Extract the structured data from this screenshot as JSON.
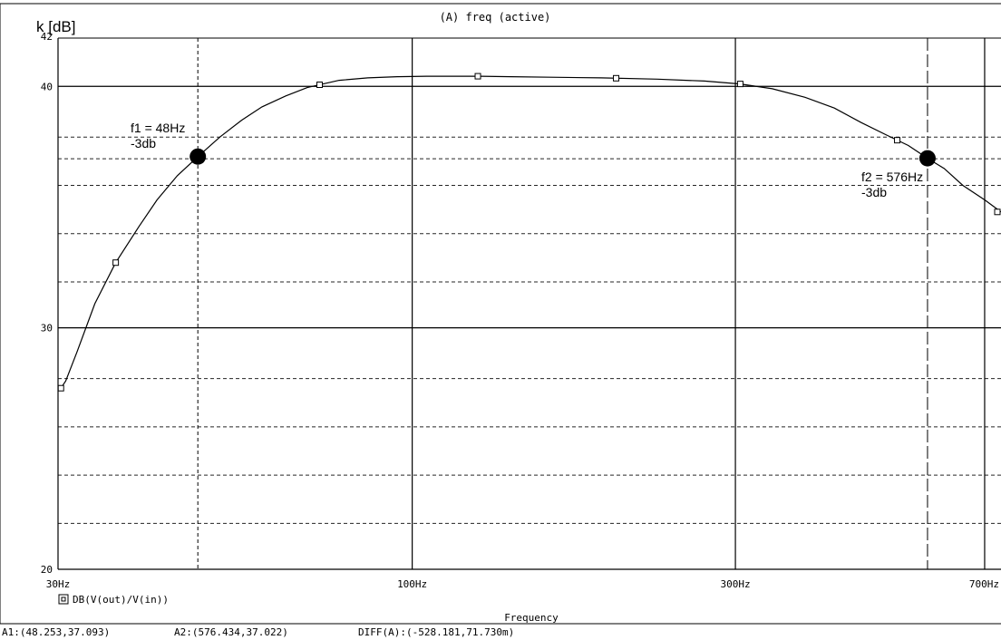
{
  "chart_data": {
    "type": "line",
    "title": "(A) freq (active)",
    "ylabel": "k [dB]",
    "xlabel": "Frequency",
    "x_scale": "log",
    "xlim": [
      30,
      740
    ],
    "ylim": [
      20,
      42
    ],
    "x_ticks": [
      {
        "value": 30,
        "label": "30Hz"
      },
      {
        "value": 100,
        "label": "100Hz"
      },
      {
        "value": 300,
        "label": "300Hz"
      },
      {
        "value": 700,
        "label": "700Hz"
      }
    ],
    "y_ticks": [
      {
        "value": 20,
        "label": "20"
      },
      {
        "value": 30,
        "label": "30"
      },
      {
        "value": 40,
        "label": "40"
      },
      {
        "value": 42,
        "label": "42"
      }
    ],
    "grid": true,
    "series": [
      {
        "name": "DB(V(out)/V(in))",
        "marker": "square",
        "x": [
          30.3,
          30.8,
          32,
          34,
          36.5,
          39.5,
          42,
          45,
          48.25,
          52,
          56,
          60,
          65,
          70,
          78,
          86,
          95,
          105,
          115,
          126,
          140,
          160,
          190,
          230,
          270,
          305,
          340,
          380,
          420,
          460,
          500,
          540,
          576.4,
          610,
          650,
          700,
          740
        ],
        "y": [
          27.5,
          27.8,
          29.0,
          31.0,
          32.7,
          34.2,
          35.3,
          36.3,
          37.09,
          37.9,
          38.6,
          39.15,
          39.6,
          39.95,
          40.25,
          40.35,
          40.4,
          40.42,
          40.42,
          40.42,
          40.4,
          40.38,
          40.35,
          40.3,
          40.22,
          40.1,
          39.9,
          39.55,
          39.1,
          38.5,
          38.0,
          37.55,
          37.02,
          36.6,
          35.9,
          35.3,
          34.8
        ]
      }
    ],
    "markers_x": [
      30.3,
      36.5,
      48.5,
      73,
      125,
      200,
      305,
      520,
      740
    ],
    "cursors": [
      {
        "name": "A1",
        "x": 48.253,
        "y": 37.093
      },
      {
        "name": "A2",
        "x": 576.434,
        "y": 37.022
      }
    ],
    "annotations": [
      {
        "text": "f1 = 48Hz",
        "x": 48.253,
        "y": 37.093
      },
      {
        "text": "-3db",
        "x": 48.253,
        "y": 37.093
      },
      {
        "text": "f2 = 576Hz",
        "x": 576.434,
        "y": 37.022
      },
      {
        "text": "-3db",
        "x": 576.434,
        "y": 37.022
      }
    ],
    "reference_lines_y": [
      37.9,
      37.0,
      35.9,
      33.9,
      31.9,
      27.9,
      25.9,
      23.9,
      21.9
    ],
    "legend": {
      "text": "DB(V(out)/V(in))",
      "placement": "bottom-left"
    },
    "status": {
      "a1": "A1:(48.253,37.093)",
      "a2": "A2:(576.434,37.022)",
      "diff": "DIFF(A):(-528.181,71.730m)"
    }
  }
}
